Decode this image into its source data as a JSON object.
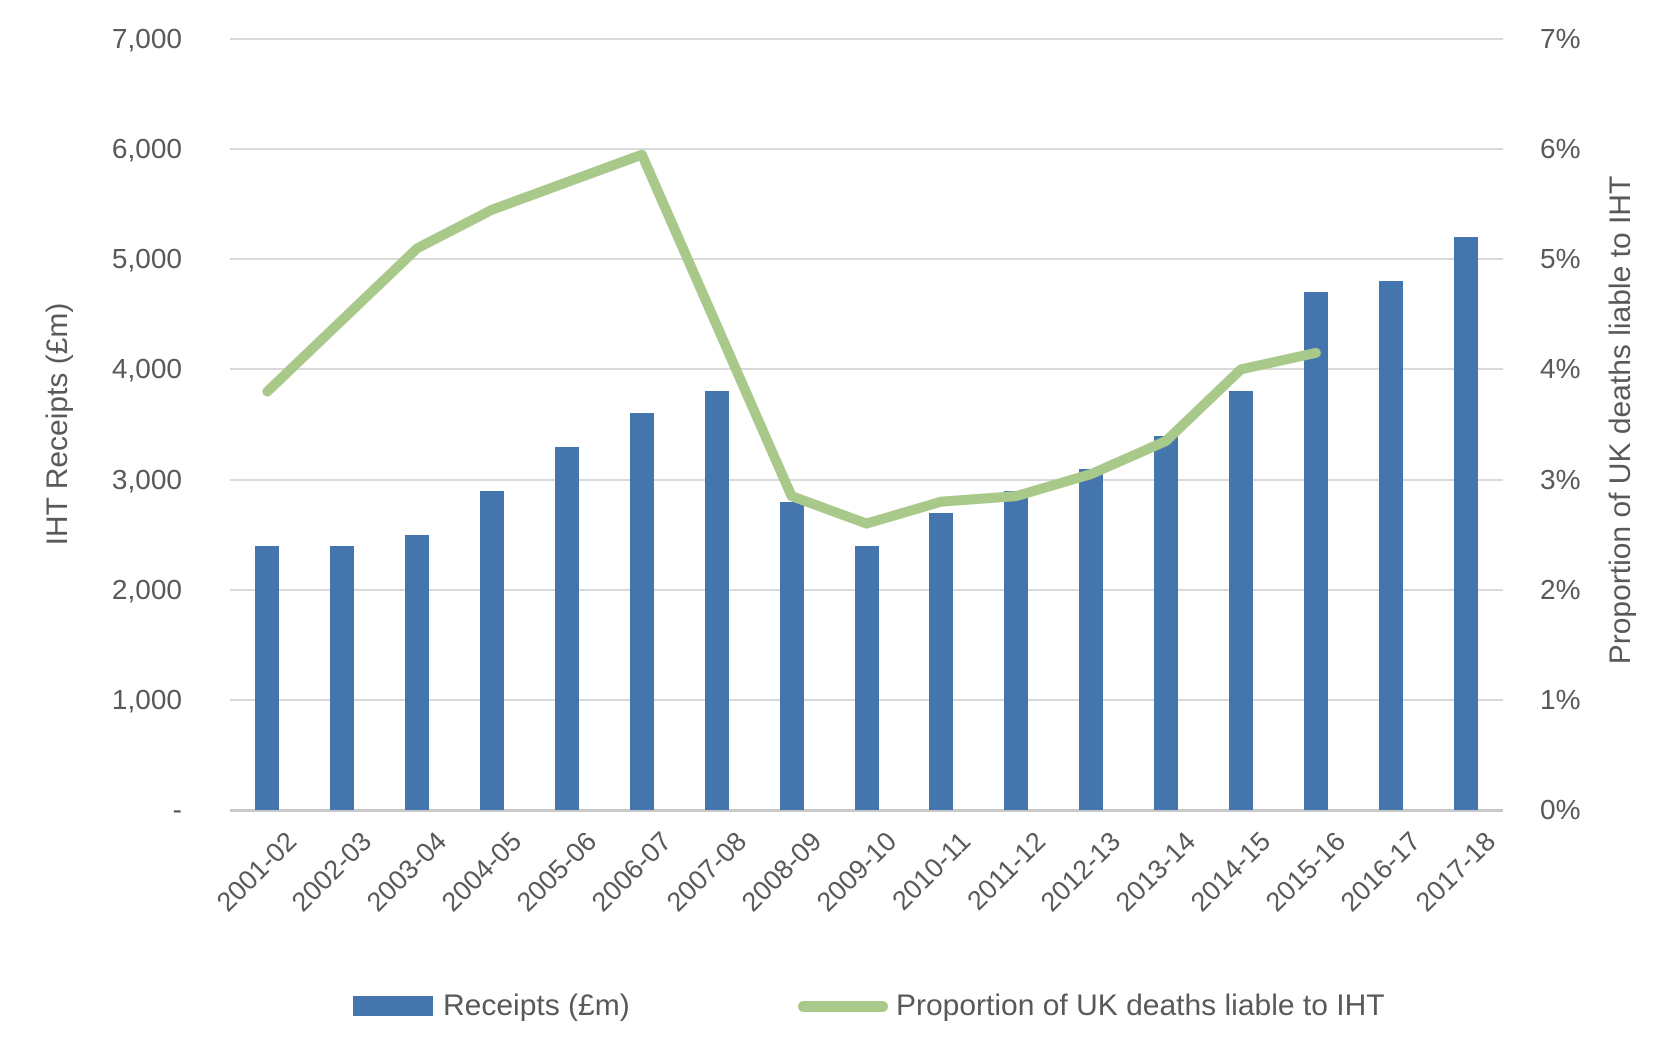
{
  "chart_data": {
    "type": "bar+line",
    "categories": [
      "2001-02",
      "2002-03",
      "2003-04",
      "2004-05",
      "2005-06",
      "2006-07",
      "2007-08",
      "2008-09",
      "2009-10",
      "2010-11",
      "2011-12",
      "2012-13",
      "2013-14",
      "2014-15",
      "2015-16",
      "2016-17",
      "2017-18"
    ],
    "series": [
      {
        "name": "Receipts (£m)",
        "type": "bar",
        "axis": "left",
        "color": "#4475AD",
        "values": [
          2400,
          2400,
          2500,
          2900,
          3300,
          3600,
          3800,
          2800,
          2400,
          2700,
          2900,
          3100,
          3400,
          3800,
          4700,
          4800,
          5200
        ]
      },
      {
        "name": "Proportion of UK deaths liable to IHT",
        "type": "line",
        "axis": "right",
        "color": "#A9C98A",
        "values": [
          3.8,
          4.45,
          5.1,
          5.45,
          5.7,
          5.95,
          4.4,
          2.85,
          2.6,
          2.8,
          2.85,
          3.05,
          3.35,
          4.0,
          4.15,
          null,
          null
        ]
      }
    ],
    "left_axis": {
      "title": "IHT Receipts (£m)",
      "min": 0,
      "max": 7000,
      "step": 1000,
      "tick_labels_top_to_bottom": [
        "7,000",
        "6,000",
        "5,000",
        "4,000",
        "3,000",
        "2,000",
        "1,000",
        "-"
      ]
    },
    "right_axis": {
      "title": "Proportion of UK deaths liable to IHT",
      "min": 0,
      "max": 7,
      "step": 1,
      "tick_labels_top_to_bottom": [
        "7%",
        "6%",
        "5%",
        "4%",
        "3%",
        "2%",
        "1%",
        "0%"
      ]
    },
    "grid": true,
    "legend_position": "bottom"
  },
  "colors": {
    "bar": "#4475AD",
    "line": "#A9C98A",
    "text": "#595959",
    "gridline": "#D9D9D9",
    "axis_line": "#C9C9C9",
    "background": "#FFFFFF"
  }
}
